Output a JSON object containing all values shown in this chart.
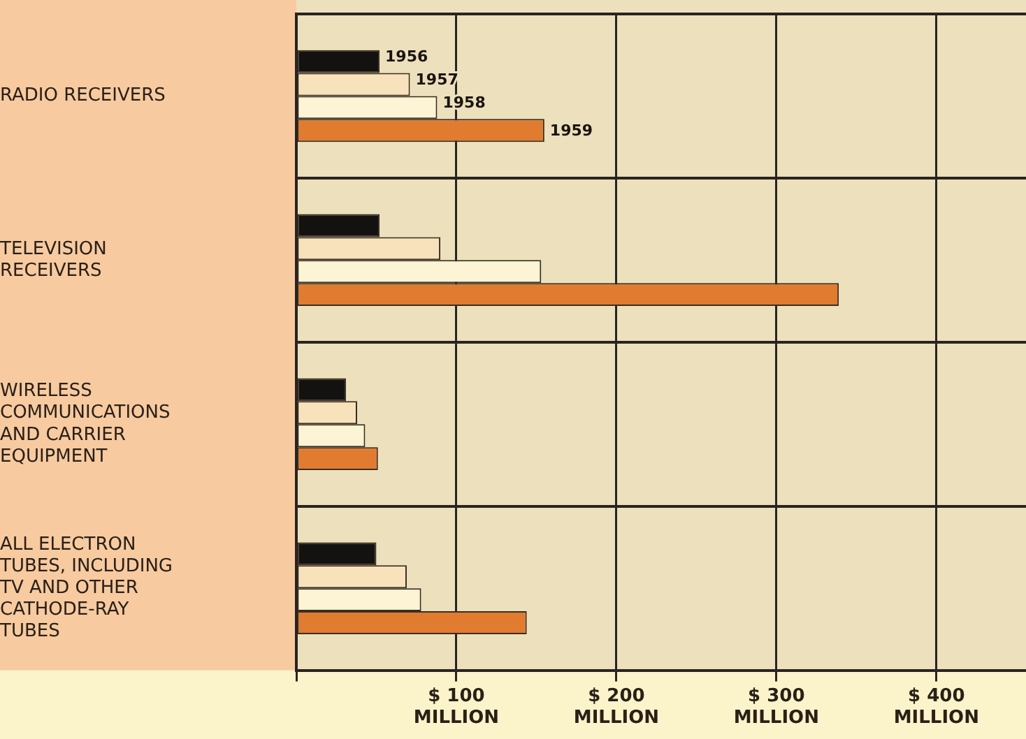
{
  "chart_data": {
    "type": "bar",
    "orientation": "horizontal",
    "categories": [
      "RADIO RECEIVERS",
      "TELEVISION RECEIVERS",
      "WIRELESS COMMUNICATIONS AND CARRIER EQUIPMENT",
      "ALL ELECTRON TUBES, INCLUDING TV AND OTHER CATHODE-RAY TUBES"
    ],
    "series": [
      {
        "name": "1956",
        "color": "#141210",
        "values": [
          52,
          52,
          31,
          50
        ]
      },
      {
        "name": "1957",
        "color": "#f8e2bc",
        "values": [
          71,
          90,
          38,
          69
        ]
      },
      {
        "name": "1958",
        "color": "#fcf4d4",
        "values": [
          88,
          153,
          43,
          78
        ]
      },
      {
        "name": "1959",
        "color": "#e17b30",
        "values": [
          155,
          339,
          51,
          144
        ]
      }
    ],
    "xlim": [
      0,
      456
    ],
    "xticks": [
      {
        "value": 0,
        "label": null
      },
      {
        "value": 100,
        "label": "$ 100 MILLION"
      },
      {
        "value": 200,
        "label": "$ 200 MILLION"
      },
      {
        "value": 300,
        "label": "$ 300 MILLION"
      },
      {
        "value": 400,
        "label": "$ 400 MILLION"
      }
    ],
    "grid": true,
    "legend": "top left"
  }
}
